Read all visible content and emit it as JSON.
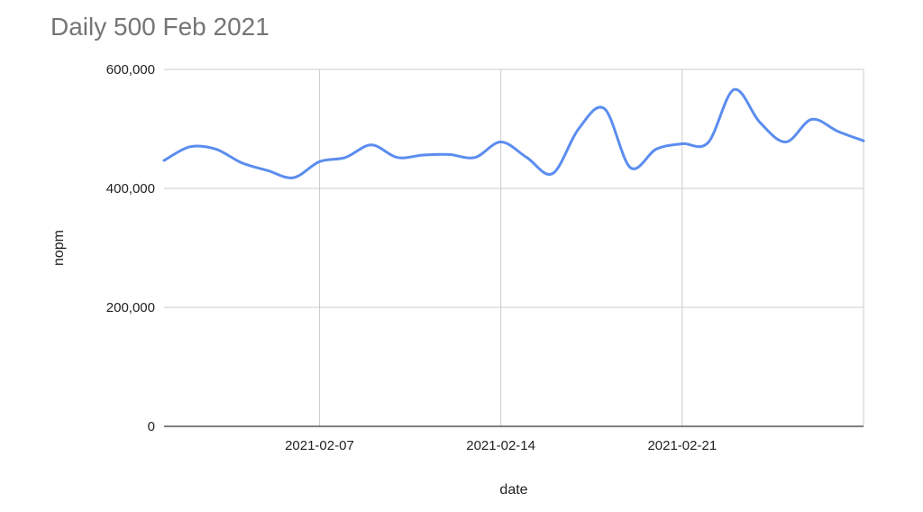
{
  "chart_data": {
    "type": "line",
    "title": "Daily 500 Feb 2021",
    "xlabel": "date",
    "ylabel": "nopm",
    "x": [
      "2021-02-01",
      "2021-02-02",
      "2021-02-03",
      "2021-02-04",
      "2021-02-05",
      "2021-02-06",
      "2021-02-07",
      "2021-02-08",
      "2021-02-09",
      "2021-02-10",
      "2021-02-11",
      "2021-02-12",
      "2021-02-13",
      "2021-02-14",
      "2021-02-15",
      "2021-02-16",
      "2021-02-17",
      "2021-02-18",
      "2021-02-19",
      "2021-02-20",
      "2021-02-21",
      "2021-02-22",
      "2021-02-23",
      "2021-02-24",
      "2021-02-25",
      "2021-02-26",
      "2021-02-27",
      "2021-02-28"
    ],
    "series": [
      {
        "color": "#5b8def",
        "values": [
          447000,
          470000,
          466000,
          443000,
          430000,
          418000,
          445000,
          452000,
          473000,
          452000,
          456000,
          457000,
          452000,
          478000,
          452000,
          425000,
          500000,
          534000,
          435000,
          466000,
          475000,
          477000,
          566000,
          511000,
          478000,
          516000,
          496000,
          480000
        ]
      }
    ],
    "x_ticks": [
      "2021-02-07",
      "2021-02-14",
      "2021-02-21"
    ],
    "y_ticks": [
      "0",
      "200,000",
      "400,000",
      "600,000"
    ],
    "y_tick_values": [
      0,
      200000,
      400000,
      600000
    ],
    "ylim": [
      0,
      600000
    ],
    "xlim": [
      "2021-02-01",
      "2021-02-28"
    ],
    "grid": true,
    "legend": "none"
  }
}
